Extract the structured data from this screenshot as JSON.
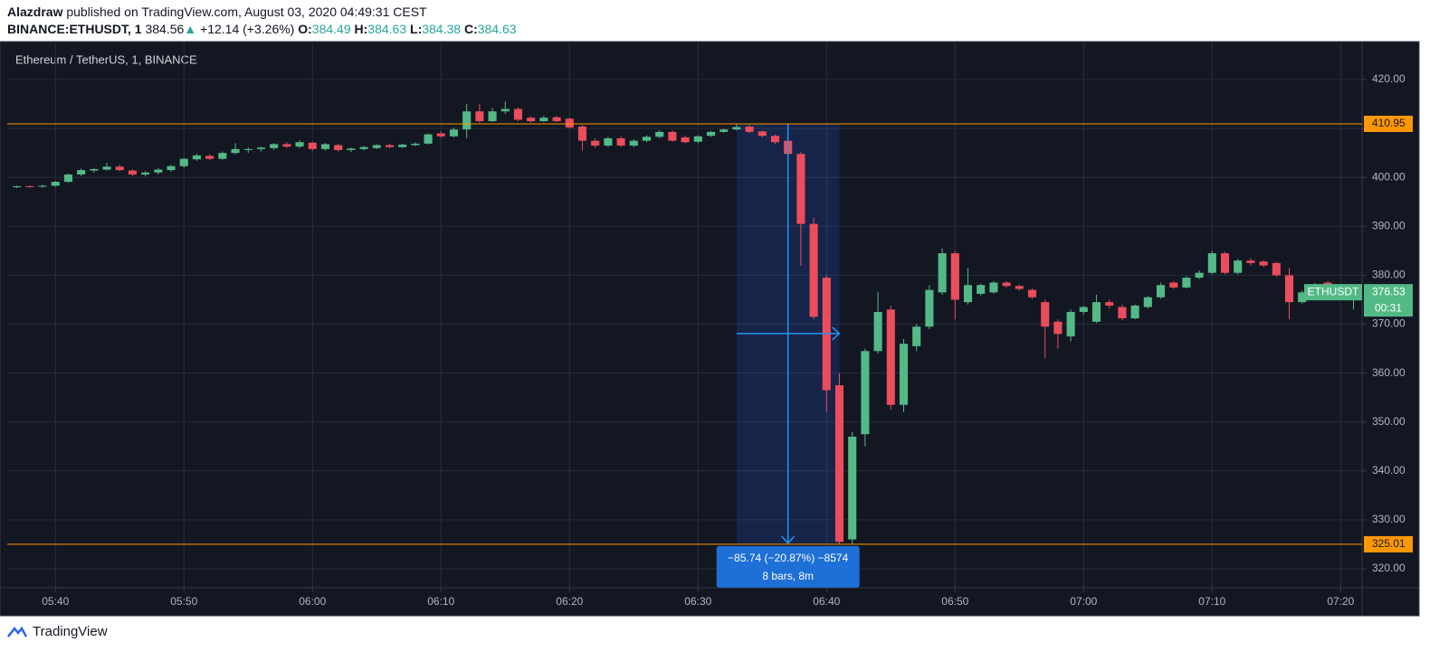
{
  "header": {
    "author": "Alazdraw",
    "published": "published on TradingView.com, August 03, 2020 04:49:31 CEST",
    "symbol": "BINANCE:ETHUSDT, 1",
    "last": "384.56",
    "change": "+12.14 (+3.26%)",
    "ohlc": [
      {
        "label": "O:",
        "value": "384.49"
      },
      {
        "label": "H:",
        "value": "384.63"
      },
      {
        "label": "L:",
        "value": "384.38"
      },
      {
        "label": "C:",
        "value": "384.63"
      }
    ]
  },
  "footer": {
    "brand": "TradingView"
  },
  "chart_data": {
    "type": "candlestick",
    "title": "Ethereum / TetherUS, 1, BINANCE",
    "up_color": "#53b987",
    "down_color": "#eb4d5c",
    "grid": true,
    "x": [
      "05:37",
      "05:38",
      "05:39",
      "05:40",
      "05:41",
      "05:42",
      "05:43",
      "05:44",
      "05:45",
      "05:46",
      "05:47",
      "05:48",
      "05:49",
      "05:50",
      "05:51",
      "05:52",
      "05:53",
      "05:54",
      "05:55",
      "05:56",
      "05:57",
      "05:58",
      "05:59",
      "06:00",
      "06:01",
      "06:02",
      "06:03",
      "06:04",
      "06:05",
      "06:06",
      "06:07",
      "06:08",
      "06:09",
      "06:10",
      "06:11",
      "06:12",
      "06:13",
      "06:14",
      "06:15",
      "06:16",
      "06:17",
      "06:18",
      "06:19",
      "06:20",
      "06:21",
      "06:22",
      "06:23",
      "06:24",
      "06:25",
      "06:26",
      "06:27",
      "06:28",
      "06:29",
      "06:30",
      "06:31",
      "06:32",
      "06:33",
      "06:34",
      "06:35",
      "06:36",
      "06:37",
      "06:38",
      "06:39",
      "06:40",
      "06:41",
      "06:42",
      "06:43",
      "06:44",
      "06:45",
      "06:46",
      "06:47",
      "06:48",
      "06:49",
      "06:50",
      "06:51",
      "06:52",
      "06:53",
      "06:54",
      "06:55",
      "06:56",
      "06:57",
      "06:58",
      "06:59",
      "07:00",
      "07:01",
      "07:02",
      "07:03",
      "07:04",
      "07:05",
      "07:06",
      "07:07",
      "07:08",
      "07:09",
      "07:10",
      "07:11",
      "07:12",
      "07:13",
      "07:14",
      "07:15",
      "07:16",
      "07:17",
      "07:18",
      "07:19",
      "07:20",
      "07:21"
    ],
    "open": [
      398.0,
      398.2,
      398.1,
      398.3,
      399.1,
      400.6,
      401.4,
      401.6,
      402.2,
      401.4,
      400.6,
      401.0,
      401.5,
      402.3,
      403.7,
      404.4,
      403.8,
      405.0,
      405.6,
      405.8,
      406.0,
      406.8,
      406.3,
      407.1,
      405.8,
      406.6,
      405.6,
      405.8,
      406.0,
      406.6,
      406.2,
      406.6,
      406.9,
      409.0,
      408.4,
      409.8,
      413.5,
      411.5,
      413.5,
      414.0,
      412.2,
      411.5,
      412.3,
      412.0,
      410.4,
      407.5,
      406.5,
      408.0,
      406.5,
      407.5,
      408.3,
      409.3,
      408.2,
      407.3,
      408.5,
      409.3,
      409.8,
      410.4,
      409.4,
      408.5,
      407.5,
      404.8,
      390.5,
      379.5,
      357.5,
      326.0,
      347.5,
      364.5,
      373.0,
      353.5,
      365.5,
      369.5,
      376.5,
      384.5,
      374.5,
      376.2,
      376.5,
      378.5,
      377.8,
      377.0,
      374.5,
      370.5,
      367.5,
      372.5,
      370.5,
      374.5,
      373.5,
      371.2,
      373.5,
      375.5,
      378.5,
      377.5,
      379.5,
      380.5,
      384.5,
      380.5,
      383.0,
      382.8,
      382.5,
      380.0,
      374.5,
      376.5,
      378.5,
      377.8,
      376.3
    ],
    "high": [
      398.3,
      398.4,
      398.5,
      399.3,
      400.8,
      401.8,
      401.9,
      403.0,
      402.6,
      401.7,
      401.3,
      401.9,
      402.6,
      404.0,
      404.8,
      404.7,
      405.3,
      407.0,
      406.1,
      406.3,
      407.0,
      407.2,
      407.6,
      407.3,
      407.0,
      406.9,
      406.1,
      406.4,
      406.8,
      406.9,
      406.9,
      407.2,
      409.0,
      409.4,
      410.2,
      415.0,
      415.0,
      414.2,
      415.5,
      414.3,
      412.5,
      412.6,
      412.6,
      412.2,
      410.7,
      408.0,
      408.3,
      408.4,
      407.8,
      408.6,
      409.6,
      409.6,
      408.5,
      408.6,
      409.5,
      410.0,
      410.95,
      410.7,
      409.6,
      408.8,
      408.5,
      405.2,
      391.8,
      380.0,
      360.0,
      348.0,
      365.0,
      376.5,
      373.8,
      367.0,
      370.0,
      378.0,
      385.5,
      384.9,
      381.5,
      378.3,
      378.8,
      378.8,
      378.0,
      377.3,
      375.0,
      371.0,
      373.0,
      373.8,
      376.0,
      375.0,
      374.0,
      374.0,
      375.8,
      378.5,
      378.8,
      379.8,
      381.0,
      385.0,
      384.8,
      383.3,
      383.5,
      383.1,
      382.8,
      381.5,
      376.9,
      378.4,
      378.8,
      378.2,
      377.0
    ],
    "low": [
      397.8,
      397.9,
      397.9,
      398.1,
      398.9,
      400.3,
      401.0,
      401.4,
      401.3,
      400.3,
      400.2,
      400.6,
      401.2,
      402.0,
      403.4,
      403.5,
      403.6,
      404.7,
      405.0,
      405.3,
      405.6,
      406.0,
      406.0,
      405.4,
      405.5,
      405.3,
      405.2,
      405.5,
      405.8,
      406.0,
      406.0,
      406.4,
      406.7,
      408.1,
      408.2,
      408.0,
      411.2,
      411.3,
      413.0,
      411.5,
      411.2,
      411.3,
      411.3,
      410.0,
      405.5,
      406.0,
      406.2,
      406.2,
      406.2,
      407.2,
      408.0,
      407.3,
      407.0,
      407.0,
      408.3,
      409.1,
      409.6,
      409.0,
      408.2,
      406.9,
      404.3,
      382.0,
      371.0,
      352.0,
      325.01,
      325.01,
      345.0,
      364.0,
      352.5,
      352.0,
      364.5,
      369.0,
      376.0,
      371.0,
      374.0,
      375.8,
      376.2,
      377.5,
      376.8,
      375.2,
      363.0,
      365.0,
      366.5,
      372.0,
      370.2,
      373.2,
      370.8,
      371.0,
      373.2,
      375.2,
      377.2,
      377.3,
      379.2,
      380.2,
      380.2,
      380.2,
      382.0,
      381.7,
      379.7,
      371.0,
      374.2,
      376.2,
      377.2,
      376.0,
      373.0
    ],
    "close": [
      398.2,
      398.1,
      398.3,
      399.1,
      400.6,
      401.5,
      401.7,
      402.2,
      401.5,
      400.6,
      401.0,
      401.6,
      402.3,
      403.8,
      404.5,
      403.8,
      405.0,
      405.8,
      405.8,
      406.1,
      406.8,
      406.3,
      407.2,
      405.8,
      406.8,
      405.6,
      405.9,
      406.2,
      406.6,
      406.2,
      406.7,
      406.9,
      408.8,
      408.4,
      409.8,
      413.5,
      411.5,
      413.5,
      414.0,
      411.8,
      411.5,
      412.2,
      411.5,
      410.2,
      407.5,
      406.5,
      408.0,
      406.5,
      407.5,
      408.3,
      409.3,
      407.5,
      407.2,
      408.4,
      409.3,
      409.8,
      410.3,
      409.3,
      408.5,
      407.2,
      404.8,
      390.5,
      371.5,
      356.5,
      325.5,
      347.0,
      364.5,
      372.5,
      353.5,
      366.0,
      369.5,
      377.0,
      384.5,
      375.0,
      378.0,
      378.0,
      378.5,
      377.8,
      377.2,
      375.5,
      369.5,
      368.0,
      372.5,
      373.5,
      374.5,
      373.8,
      371.2,
      373.8,
      375.5,
      378.0,
      377.5,
      379.5,
      380.5,
      384.5,
      380.5,
      383.0,
      382.5,
      382.0,
      380.0,
      374.5,
      376.5,
      378.0,
      377.5,
      376.3,
      376.53
    ],
    "xlim": [
      "05:36:15",
      "07:21:40"
    ],
    "xticks": [
      "05:40",
      "05:50",
      "06:00",
      "06:10",
      "06:20",
      "06:30",
      "06:40",
      "06:50",
      "07:00",
      "07:10",
      "07:20"
    ],
    "ylim": [
      316.12,
      427.58
    ],
    "yticks": [
      {
        "value": 320,
        "label": "320.00"
      },
      {
        "value": 330,
        "label": "330.00"
      },
      {
        "value": 340,
        "label": "340.00"
      },
      {
        "value": 350,
        "label": "350.00"
      },
      {
        "value": 360,
        "label": "360.00"
      },
      {
        "value": 370,
        "label": "370.00"
      },
      {
        "value": 380,
        "label": "380.00"
      },
      {
        "value": 390,
        "label": "390.00"
      },
      {
        "value": 400,
        "label": "400.00"
      },
      {
        "value": 410,
        "label": "410.00"
      },
      {
        "value": 420,
        "label": "420.00"
      }
    ],
    "hlines": [
      {
        "value": 410.95,
        "color": "#ff9800"
      },
      {
        "value": 325.01,
        "color": "#ff9800"
      }
    ],
    "last": {
      "symbol": "ETHUSDT",
      "value": 376.53,
      "countdown": "00:31"
    },
    "measure": {
      "from": "06:33",
      "to": "06:41",
      "start": 410.95,
      "end": 325.21,
      "label": "−85.74 (−20.87%) −8574",
      "sub": "8 bars, 8m"
    }
  }
}
